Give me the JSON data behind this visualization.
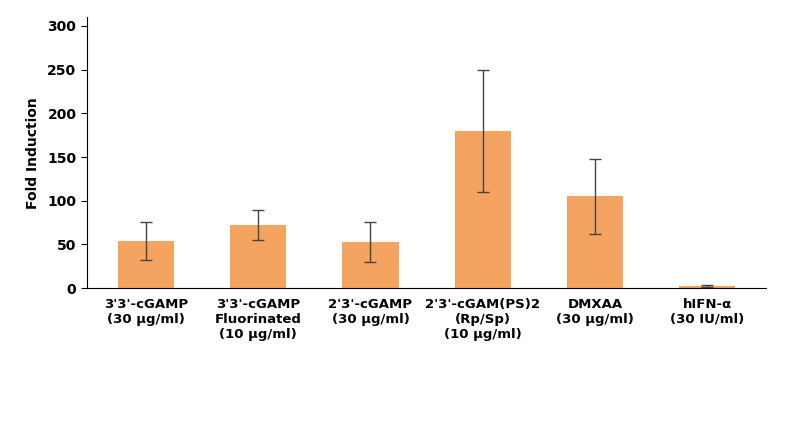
{
  "ylabel": "Fold Induction",
  "categories": [
    "3'3'-cGAMP\n(30 μg/ml)",
    "3'3'-cGAMP\nFluorinated\n(10 μg/ml)",
    "2'3'-cGAMP\n(30 μg/ml)",
    "2'3'-cGAM(PS)2\n(Rp/Sp)\n(10 μg/ml)",
    "DMXAA\n(30 μg/ml)",
    "hIFN-α\n(30 IU/ml)"
  ],
  "values": [
    54,
    72,
    53,
    180,
    105,
    2
  ],
  "errors": [
    22,
    17,
    23,
    70,
    43,
    1
  ],
  "bar_color": "#F4A460",
  "bar_edge_color": "none",
  "error_color": "#444444",
  "ylim": [
    0,
    310
  ],
  "yticks": [
    0,
    50,
    100,
    150,
    200,
    250,
    300
  ],
  "bar_width": 0.5,
  "figsize": [
    7.9,
    4.3
  ],
  "dpi": 100,
  "background_color": "#ffffff",
  "ylabel_fontsize": 10,
  "tick_fontsize": 10,
  "xlabel_fontsize": 9.5
}
